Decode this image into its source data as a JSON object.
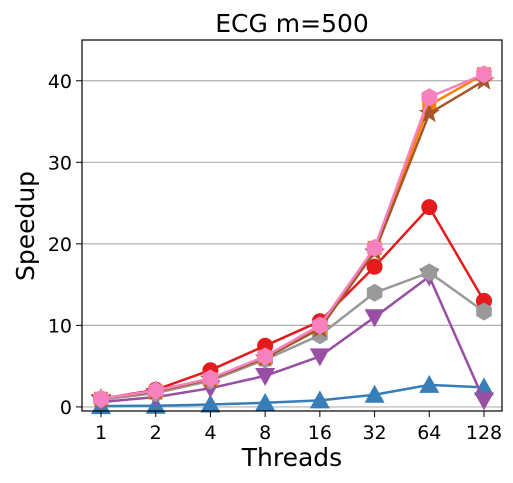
{
  "chart_data": {
    "type": "line",
    "title": "ECG m=500",
    "xlabel": "Threads",
    "ylabel": "Speedup",
    "categories": [
      "1",
      "2",
      "4",
      "8",
      "16",
      "32",
      "64",
      "128"
    ],
    "ylim": [
      -0.5,
      45
    ],
    "yticks": [
      "0",
      "10",
      "20",
      "30",
      "40"
    ],
    "grid": "horizontal",
    "legend": "none",
    "series": [
      {
        "color": "#e41a1c",
        "marker": "circle",
        "values": [
          1.0,
          2.1,
          4.5,
          7.5,
          10.5,
          17.2,
          24.5,
          13.0
        ]
      },
      {
        "color": "#377eb8",
        "marker": "triangle-up",
        "values": [
          0.1,
          0.15,
          0.3,
          0.5,
          0.8,
          1.5,
          2.7,
          2.4
        ]
      },
      {
        "color": "#984ea3",
        "marker": "triangle-down",
        "values": [
          0.6,
          1.2,
          2.3,
          3.8,
          6.2,
          11.0,
          16.0,
          0.8
        ]
      },
      {
        "color": "#999999",
        "marker": "hexagon",
        "values": [
          0.9,
          1.7,
          3.2,
          5.8,
          8.8,
          14.0,
          16.5,
          11.7
        ]
      },
      {
        "color": "#ff7f00",
        "marker": "square",
        "values": [
          1.0,
          1.9,
          3.4,
          6.1,
          9.8,
          19.5,
          37.0,
          40.8
        ]
      },
      {
        "color": "#a65628",
        "marker": "star",
        "values": [
          1.0,
          1.9,
          3.4,
          6.0,
          9.6,
          19.0,
          36.0,
          40.0
        ]
      },
      {
        "color": "#f781bf",
        "marker": "hexagon",
        "values": [
          1.0,
          2.0,
          3.5,
          6.2,
          10.0,
          19.5,
          38.0,
          40.8
        ]
      }
    ]
  }
}
